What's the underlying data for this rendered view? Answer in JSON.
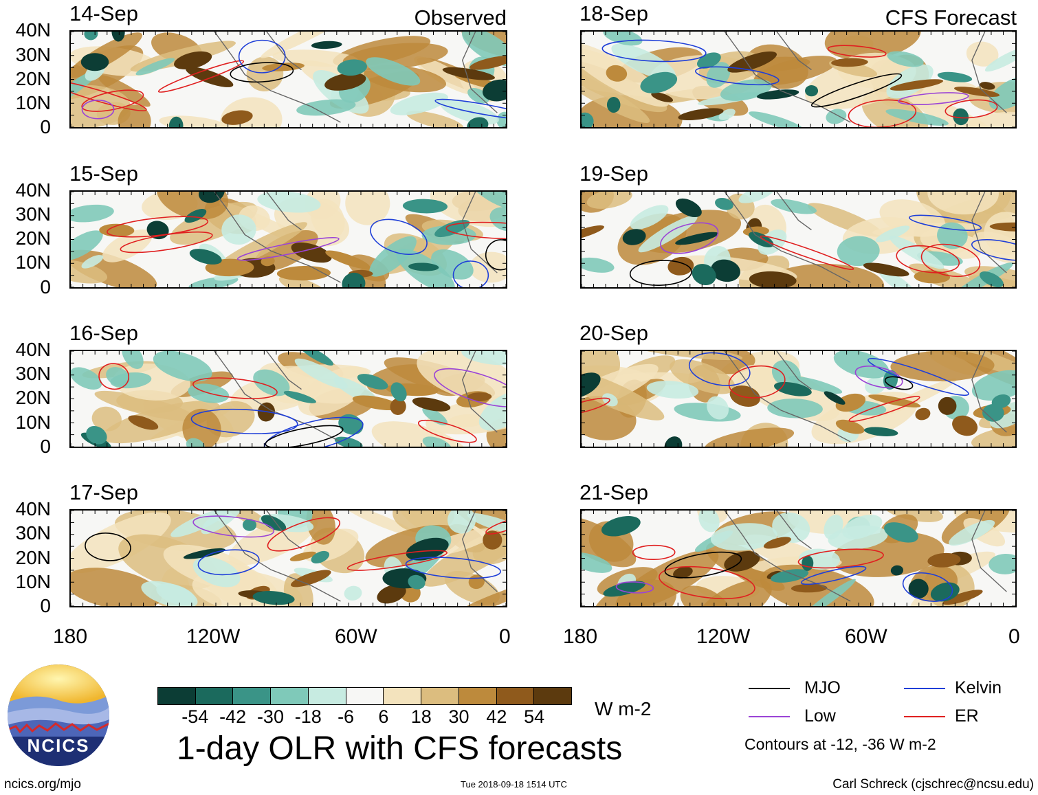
{
  "figure": {
    "title": "1-day OLR with CFS forecasts",
    "units": "W m-2",
    "observed_tag": "Observed",
    "forecast_tag": "CFS Forecast",
    "lat_labels": [
      "40N",
      "30N",
      "20N",
      "10N",
      "0"
    ],
    "lon_labels": [
      "180",
      "120W",
      "60W",
      "0"
    ]
  },
  "panels": {
    "observed": [
      {
        "date": "14-Sep"
      },
      {
        "date": "15-Sep"
      },
      {
        "date": "16-Sep"
      },
      {
        "date": "17-Sep"
      }
    ],
    "forecast": [
      {
        "date": "18-Sep"
      },
      {
        "date": "19-Sep"
      },
      {
        "date": "20-Sep"
      },
      {
        "date": "21-Sep"
      }
    ]
  },
  "colorbar": {
    "ticks": [
      "-54",
      "-42",
      "-30",
      "-18",
      "-6",
      "6",
      "18",
      "30",
      "42",
      "54"
    ],
    "colors": [
      "#0c3d35",
      "#1b6a5d",
      "#3a9487",
      "#7fc9b9",
      "#c7ebe1",
      "#f7f7f5",
      "#f3e3bd",
      "#dcbd7f",
      "#bd8a3c",
      "#8f5a1c",
      "#5c3a0e"
    ]
  },
  "legend": {
    "items": [
      {
        "label": "MJO",
        "color": "#000000"
      },
      {
        "label": "Kelvin",
        "color": "#1f3fd8"
      },
      {
        "label": "Low",
        "color": "#9b44d6"
      },
      {
        "label": "ER",
        "color": "#e02020"
      }
    ],
    "note": "Contours at -12, -36 W m-2"
  },
  "logo": {
    "text": "NCICS"
  },
  "footer": {
    "left": "ncics.org/mjo",
    "middle": "Tue 2018-09-18 1514 UTC",
    "right": "Carl Schreck (cjschrec@ncsu.edu)"
  }
}
